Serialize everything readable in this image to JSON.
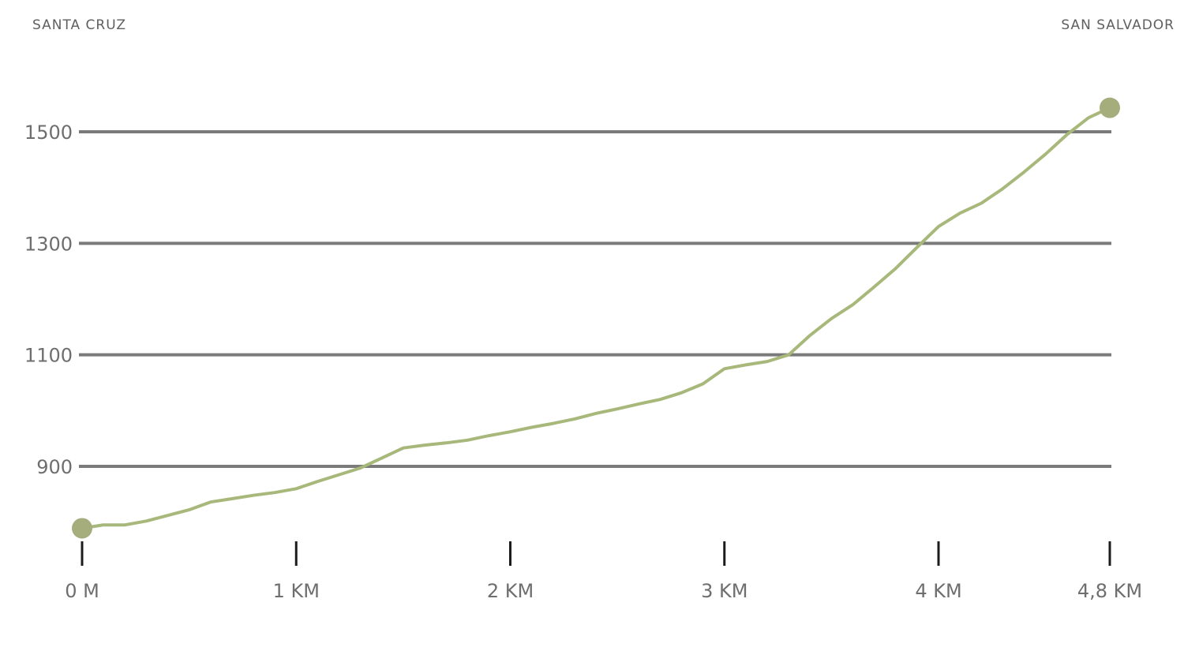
{
  "labels": {
    "start_place": "SANTA CRUZ",
    "end_place": "SAN SALVADOR"
  },
  "colors": {
    "line": "#a7b87a",
    "marker": "#a5ad7d",
    "grid": "#7a7a7a"
  },
  "chart_data": {
    "type": "line",
    "title": "",
    "xlabel": "",
    "ylabel": "",
    "xlim": [
      0,
      4.8
    ],
    "ylim": [
      750,
      1600
    ],
    "x_ticks": [
      {
        "value": 0,
        "label": "0 M"
      },
      {
        "value": 1,
        "label": "1 KM"
      },
      {
        "value": 2,
        "label": "2 KM"
      },
      {
        "value": 3,
        "label": "3 KM"
      },
      {
        "value": 4,
        "label": "4 KM"
      },
      {
        "value": 4.8,
        "label": "4,8 KM"
      }
    ],
    "y_ticks": [
      {
        "value": 900,
        "label": "900"
      },
      {
        "value": 1100,
        "label": "1100"
      },
      {
        "value": 1300,
        "label": "1300"
      },
      {
        "value": 1500,
        "label": "1500"
      }
    ],
    "grid": true,
    "series": [
      {
        "x": [
          0,
          0.1,
          0.2,
          0.3,
          0.4,
          0.5,
          0.6,
          0.7,
          0.8,
          0.9,
          1.0,
          1.1,
          1.2,
          1.3,
          1.4,
          1.5,
          1.6,
          1.7,
          1.8,
          1.9,
          2.0,
          2.1,
          2.2,
          2.3,
          2.4,
          2.5,
          2.6,
          2.7,
          2.8,
          2.9,
          3.0,
          3.1,
          3.2,
          3.3,
          3.4,
          3.5,
          3.6,
          3.7,
          3.8,
          3.9,
          4.0,
          4.1,
          4.2,
          4.3,
          4.4,
          4.5,
          4.6,
          4.7,
          4.8
        ],
        "y": [
          789,
          795,
          795,
          802,
          812,
          822,
          836,
          842,
          848,
          853,
          860,
          873,
          885,
          897,
          915,
          933,
          938,
          942,
          947,
          955,
          962,
          970,
          977,
          985,
          995,
          1003,
          1012,
          1020,
          1032,
          1048,
          1075,
          1082,
          1088,
          1100,
          1135,
          1165,
          1190,
          1222,
          1255,
          1293,
          1330,
          1354,
          1372,
          1398,
          1428,
          1460,
          1495,
          1525,
          1543
        ]
      }
    ]
  }
}
